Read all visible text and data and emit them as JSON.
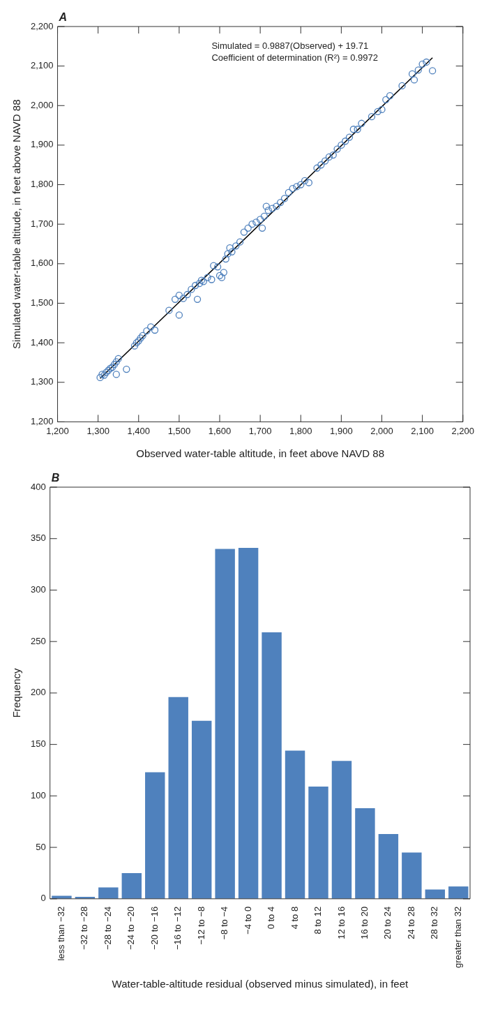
{
  "chart_data": [
    {
      "type": "scatter",
      "title": "A",
      "xlabel": "Observed water-table altitude, in feet above NAVD 88",
      "ylabel": "Simulated water-table altitude, in feet above NAVD 88",
      "annotations": [
        "Simulated = 0.9887(Observed) + 19.71",
        "Coefficient of determination (R²) = 0.9972"
      ],
      "xlim": [
        1200,
        2200
      ],
      "ylim": [
        1200,
        2200
      ],
      "xticks": [
        {
          "value": 1200,
          "label": "1,200"
        },
        {
          "value": 1300,
          "label": "1,300"
        },
        {
          "value": 1400,
          "label": "1,400"
        },
        {
          "value": 1500,
          "label": "1,500"
        },
        {
          "value": 1600,
          "label": "1,600"
        },
        {
          "value": 1700,
          "label": "1,700"
        },
        {
          "value": 1800,
          "label": "1,800"
        },
        {
          "value": 1900,
          "label": "1,900"
        },
        {
          "value": 2000,
          "label": "2,000"
        },
        {
          "value": 2100,
          "label": "2,100"
        },
        {
          "value": 2200,
          "label": "2,200"
        }
      ],
      "yticks": [
        {
          "value": 1200,
          "label": "1,200"
        },
        {
          "value": 1300,
          "label": "1,300"
        },
        {
          "value": 1400,
          "label": "1,400"
        },
        {
          "value": 1500,
          "label": "1,500"
        },
        {
          "value": 1600,
          "label": "1,600"
        },
        {
          "value": 1700,
          "label": "1,700"
        },
        {
          "value": 1800,
          "label": "1,800"
        },
        {
          "value": 1900,
          "label": "1,900"
        },
        {
          "value": 2000,
          "label": "2,000"
        },
        {
          "value": 2100,
          "label": "2,100"
        },
        {
          "value": 2200,
          "label": "2,200"
        }
      ],
      "grid": false,
      "legend": false,
      "series": [
        {
          "type": "scatter",
          "marker": "circle",
          "color": "#4f81bd",
          "x": [
            1305,
            1310,
            1315,
            1320,
            1325,
            1330,
            1335,
            1340,
            1345,
            1350,
            1345,
            1370,
            1390,
            1395,
            1400,
            1405,
            1410,
            1420,
            1430,
            1440,
            1475,
            1500,
            1490,
            1500,
            1510,
            1520,
            1530,
            1540,
            1545,
            1550,
            1555,
            1560,
            1570,
            1580,
            1585,
            1595,
            1600,
            1605,
            1610,
            1615,
            1620,
            1625,
            1630,
            1640,
            1650,
            1660,
            1670,
            1680,
            1690,
            1700,
            1705,
            1710,
            1715,
            1720,
            1730,
            1740,
            1750,
            1760,
            1770,
            1780,
            1790,
            1800,
            1810,
            1820,
            1840,
            1850,
            1860,
            1870,
            1880,
            1890,
            1900,
            1910,
            1920,
            1930,
            1940,
            1950,
            1975,
            1990,
            2000,
            2010,
            2020,
            2050,
            2075,
            2080,
            2090,
            2100,
            2110,
            2125
          ],
          "values": [
            1312,
            1320,
            1318,
            1325,
            1330,
            1335,
            1338,
            1345,
            1352,
            1360,
            1320,
            1333,
            1392,
            1400,
            1405,
            1412,
            1418,
            1430,
            1440,
            1432,
            1482,
            1470,
            1510,
            1520,
            1512,
            1522,
            1535,
            1545,
            1510,
            1550,
            1558,
            1555,
            1565,
            1560,
            1595,
            1592,
            1570,
            1565,
            1578,
            1612,
            1625,
            1640,
            1630,
            1645,
            1655,
            1680,
            1690,
            1700,
            1705,
            1712,
            1690,
            1720,
            1745,
            1735,
            1740,
            1745,
            1755,
            1765,
            1780,
            1790,
            1795,
            1800,
            1810,
            1805,
            1842,
            1850,
            1860,
            1870,
            1875,
            1890,
            1900,
            1910,
            1920,
            1940,
            1940,
            1955,
            1972,
            1985,
            1990,
            2015,
            2025,
            2050,
            2080,
            2065,
            2090,
            2105,
            2110,
            2088
          ]
        },
        {
          "type": "line",
          "marker": "none",
          "color": "#000000",
          "x": [
            1305,
            2125
          ],
          "values": [
            1310,
            2121
          ]
        }
      ]
    },
    {
      "type": "bar",
      "title": "B",
      "xlabel": "Water-table-altitude residual (observed minus simulated), in feet",
      "ylabel": "Frequency",
      "categories": [
        "less than −32",
        "−32 to −28",
        "−28 to −24",
        "−24 to −20",
        "−20 to −16",
        "−16 to −12",
        "−12 to −8",
        "−8 to −4",
        "−4 to 0",
        "0 to 4",
        "4 to 8",
        "8 to 12",
        "12 to 16",
        "16 to 20",
        "20 to 24",
        "24 to 28",
        "28 to 32",
        "greater than 32"
      ],
      "values": [
        3,
        2,
        11,
        25,
        123,
        196,
        173,
        340,
        341,
        259,
        144,
        109,
        134,
        88,
        63,
        45,
        9,
        12
      ],
      "color": "#4f81bd",
      "ylim": [
        0,
        400
      ],
      "yticks": [
        0,
        50,
        100,
        150,
        200,
        250,
        300,
        350,
        400
      ],
      "grid": false,
      "legend": false
    }
  ]
}
